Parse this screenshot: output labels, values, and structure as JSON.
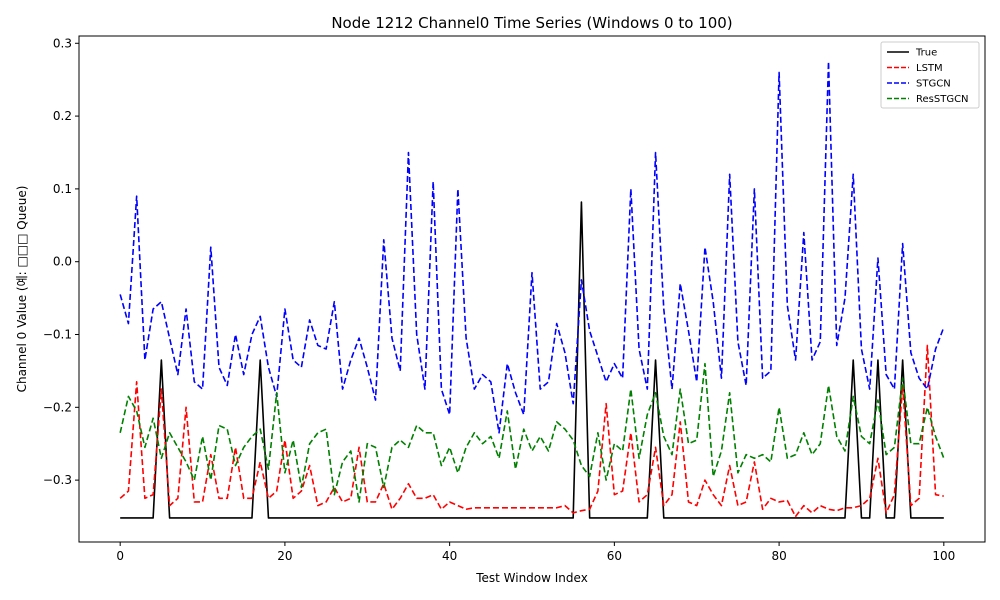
{
  "chart_data": {
    "type": "line",
    "title": "Node 1212 Channel0 Time Series (Windows 0 to 100)",
    "xlabel": "Test Window Index",
    "ylabel": "Channel 0 Value (예: □□□ Queue)",
    "xlim": [
      -5,
      105
    ],
    "ylim": [
      -0.385,
      0.31
    ],
    "xticks": [
      0,
      20,
      40,
      60,
      80,
      100
    ],
    "xtick_labels": [
      "0",
      "20",
      "40",
      "60",
      "80",
      "100"
    ],
    "yticks": [
      -0.3,
      -0.2,
      -0.1,
      0.0,
      0.1,
      0.2,
      0.3
    ],
    "ytick_labels": [
      "−0.3",
      "−0.2",
      "−0.1",
      "0.0",
      "0.1",
      "0.2",
      "0.3"
    ],
    "legend_position": "top-right",
    "grid": false,
    "x": [
      0,
      1,
      2,
      3,
      4,
      5,
      6,
      7,
      8,
      9,
      10,
      11,
      12,
      13,
      14,
      15,
      16,
      17,
      18,
      19,
      20,
      21,
      22,
      23,
      24,
      25,
      26,
      27,
      28,
      29,
      30,
      31,
      32,
      33,
      34,
      35,
      36,
      37,
      38,
      39,
      40,
      41,
      42,
      43,
      44,
      45,
      46,
      47,
      48,
      49,
      50,
      51,
      52,
      53,
      54,
      55,
      56,
      57,
      58,
      59,
      60,
      61,
      62,
      63,
      64,
      65,
      66,
      67,
      68,
      69,
      70,
      71,
      72,
      73,
      74,
      75,
      76,
      77,
      78,
      79,
      80,
      81,
      82,
      83,
      84,
      85,
      86,
      87,
      88,
      89,
      90,
      91,
      92,
      93,
      94,
      95,
      96,
      97,
      98,
      99,
      100
    ],
    "series": [
      {
        "name": "True",
        "color": "#000000",
        "dash": "solid",
        "values": [
          -0.352,
          -0.352,
          -0.352,
          -0.352,
          -0.352,
          -0.135,
          -0.352,
          -0.352,
          -0.352,
          -0.352,
          -0.352,
          -0.352,
          -0.352,
          -0.352,
          -0.352,
          -0.352,
          -0.352,
          -0.135,
          -0.352,
          -0.352,
          -0.352,
          -0.352,
          -0.352,
          -0.352,
          -0.352,
          -0.352,
          -0.352,
          -0.352,
          -0.352,
          -0.352,
          -0.352,
          -0.352,
          -0.352,
          -0.352,
          -0.352,
          -0.352,
          -0.352,
          -0.352,
          -0.352,
          -0.352,
          -0.352,
          -0.352,
          -0.352,
          -0.352,
          -0.352,
          -0.352,
          -0.352,
          -0.352,
          -0.352,
          -0.352,
          -0.352,
          -0.352,
          -0.352,
          -0.352,
          -0.352,
          -0.352,
          0.082,
          -0.352,
          -0.352,
          -0.352,
          -0.352,
          -0.352,
          -0.352,
          -0.352,
          -0.352,
          -0.135,
          -0.352,
          -0.352,
          -0.352,
          -0.352,
          -0.352,
          -0.352,
          -0.352,
          -0.352,
          -0.352,
          -0.352,
          -0.352,
          -0.352,
          -0.352,
          -0.352,
          -0.352,
          -0.352,
          -0.352,
          -0.352,
          -0.352,
          -0.352,
          -0.352,
          -0.352,
          -0.352,
          -0.135,
          -0.352,
          -0.352,
          -0.135,
          -0.352,
          -0.352,
          -0.135,
          -0.352,
          -0.352,
          -0.352,
          -0.352,
          -0.352
        ]
      },
      {
        "name": "LSTM",
        "color": "#ff0000",
        "dash": "dashed",
        "values": [
          -0.325,
          -0.315,
          -0.165,
          -0.325,
          -0.32,
          -0.175,
          -0.335,
          -0.325,
          -0.2,
          -0.33,
          -0.33,
          -0.265,
          -0.325,
          -0.325,
          -0.255,
          -0.325,
          -0.325,
          -0.275,
          -0.325,
          -0.315,
          -0.245,
          -0.325,
          -0.315,
          -0.28,
          -0.335,
          -0.33,
          -0.31,
          -0.33,
          -0.325,
          -0.255,
          -0.33,
          -0.33,
          -0.305,
          -0.34,
          -0.325,
          -0.305,
          -0.325,
          -0.325,
          -0.32,
          -0.34,
          -0.33,
          -0.335,
          -0.34,
          -0.338,
          -0.338,
          -0.338,
          -0.338,
          -0.338,
          -0.338,
          -0.338,
          -0.338,
          -0.338,
          -0.338,
          -0.338,
          -0.335,
          -0.345,
          -0.342,
          -0.34,
          -0.315,
          -0.195,
          -0.32,
          -0.315,
          -0.235,
          -0.33,
          -0.32,
          -0.255,
          -0.335,
          -0.32,
          -0.22,
          -0.33,
          -0.335,
          -0.3,
          -0.32,
          -0.335,
          -0.28,
          -0.335,
          -0.33,
          -0.275,
          -0.34,
          -0.325,
          -0.33,
          -0.328,
          -0.35,
          -0.335,
          -0.345,
          -0.335,
          -0.34,
          -0.342,
          -0.338,
          -0.338,
          -0.335,
          -0.325,
          -0.27,
          -0.345,
          -0.32,
          -0.17,
          -0.335,
          -0.325,
          -0.115,
          -0.32,
          -0.322
        ]
      },
      {
        "name": "STGCN",
        "color": "#0000ff",
        "dash": "dashed",
        "values": [
          -0.045,
          -0.085,
          0.09,
          -0.135,
          -0.065,
          -0.055,
          -0.105,
          -0.155,
          -0.065,
          -0.165,
          -0.175,
          0.02,
          -0.145,
          -0.17,
          -0.1,
          -0.155,
          -0.1,
          -0.075,
          -0.145,
          -0.185,
          -0.065,
          -0.135,
          -0.145,
          -0.08,
          -0.115,
          -0.12,
          -0.055,
          -0.175,
          -0.135,
          -0.105,
          -0.145,
          -0.19,
          0.03,
          -0.105,
          -0.15,
          0.15,
          -0.1,
          -0.175,
          0.11,
          -0.175,
          -0.21,
          0.1,
          -0.105,
          -0.175,
          -0.155,
          -0.165,
          -0.235,
          -0.14,
          -0.18,
          -0.21,
          -0.015,
          -0.175,
          -0.165,
          -0.085,
          -0.125,
          -0.195,
          -0.025,
          -0.095,
          -0.13,
          -0.165,
          -0.14,
          -0.16,
          0.1,
          -0.12,
          -0.175,
          0.15,
          -0.065,
          -0.175,
          -0.03,
          -0.095,
          -0.165,
          0.02,
          -0.055,
          -0.16,
          0.12,
          -0.11,
          -0.17,
          0.1,
          -0.16,
          -0.15,
          0.26,
          -0.06,
          -0.135,
          0.04,
          -0.135,
          -0.11,
          0.275,
          -0.115,
          -0.05,
          0.12,
          -0.12,
          -0.175,
          0.005,
          -0.155,
          -0.175,
          0.025,
          -0.125,
          -0.16,
          -0.175,
          -0.12,
          -0.09
        ]
      },
      {
        "name": "ResSTGCN",
        "color": "#008000",
        "dash": "dashed",
        "values": [
          -0.235,
          -0.185,
          -0.205,
          -0.255,
          -0.215,
          -0.27,
          -0.235,
          -0.255,
          -0.275,
          -0.3,
          -0.24,
          -0.3,
          -0.225,
          -0.23,
          -0.28,
          -0.255,
          -0.24,
          -0.23,
          -0.285,
          -0.18,
          -0.29,
          -0.245,
          -0.31,
          -0.25,
          -0.235,
          -0.23,
          -0.32,
          -0.275,
          -0.26,
          -0.33,
          -0.25,
          -0.255,
          -0.31,
          -0.255,
          -0.245,
          -0.255,
          -0.225,
          -0.235,
          -0.235,
          -0.28,
          -0.255,
          -0.29,
          -0.255,
          -0.235,
          -0.25,
          -0.24,
          -0.27,
          -0.205,
          -0.285,
          -0.23,
          -0.26,
          -0.24,
          -0.26,
          -0.22,
          -0.23,
          -0.245,
          -0.28,
          -0.295,
          -0.235,
          -0.3,
          -0.25,
          -0.26,
          -0.175,
          -0.27,
          -0.21,
          -0.18,
          -0.24,
          -0.265,
          -0.175,
          -0.25,
          -0.245,
          -0.14,
          -0.295,
          -0.26,
          -0.18,
          -0.29,
          -0.265,
          -0.27,
          -0.265,
          -0.275,
          -0.2,
          -0.27,
          -0.265,
          -0.235,
          -0.265,
          -0.25,
          -0.17,
          -0.24,
          -0.26,
          -0.185,
          -0.24,
          -0.25,
          -0.19,
          -0.265,
          -0.255,
          -0.16,
          -0.25,
          -0.25,
          -0.2,
          -0.24,
          -0.27
        ]
      }
    ]
  }
}
